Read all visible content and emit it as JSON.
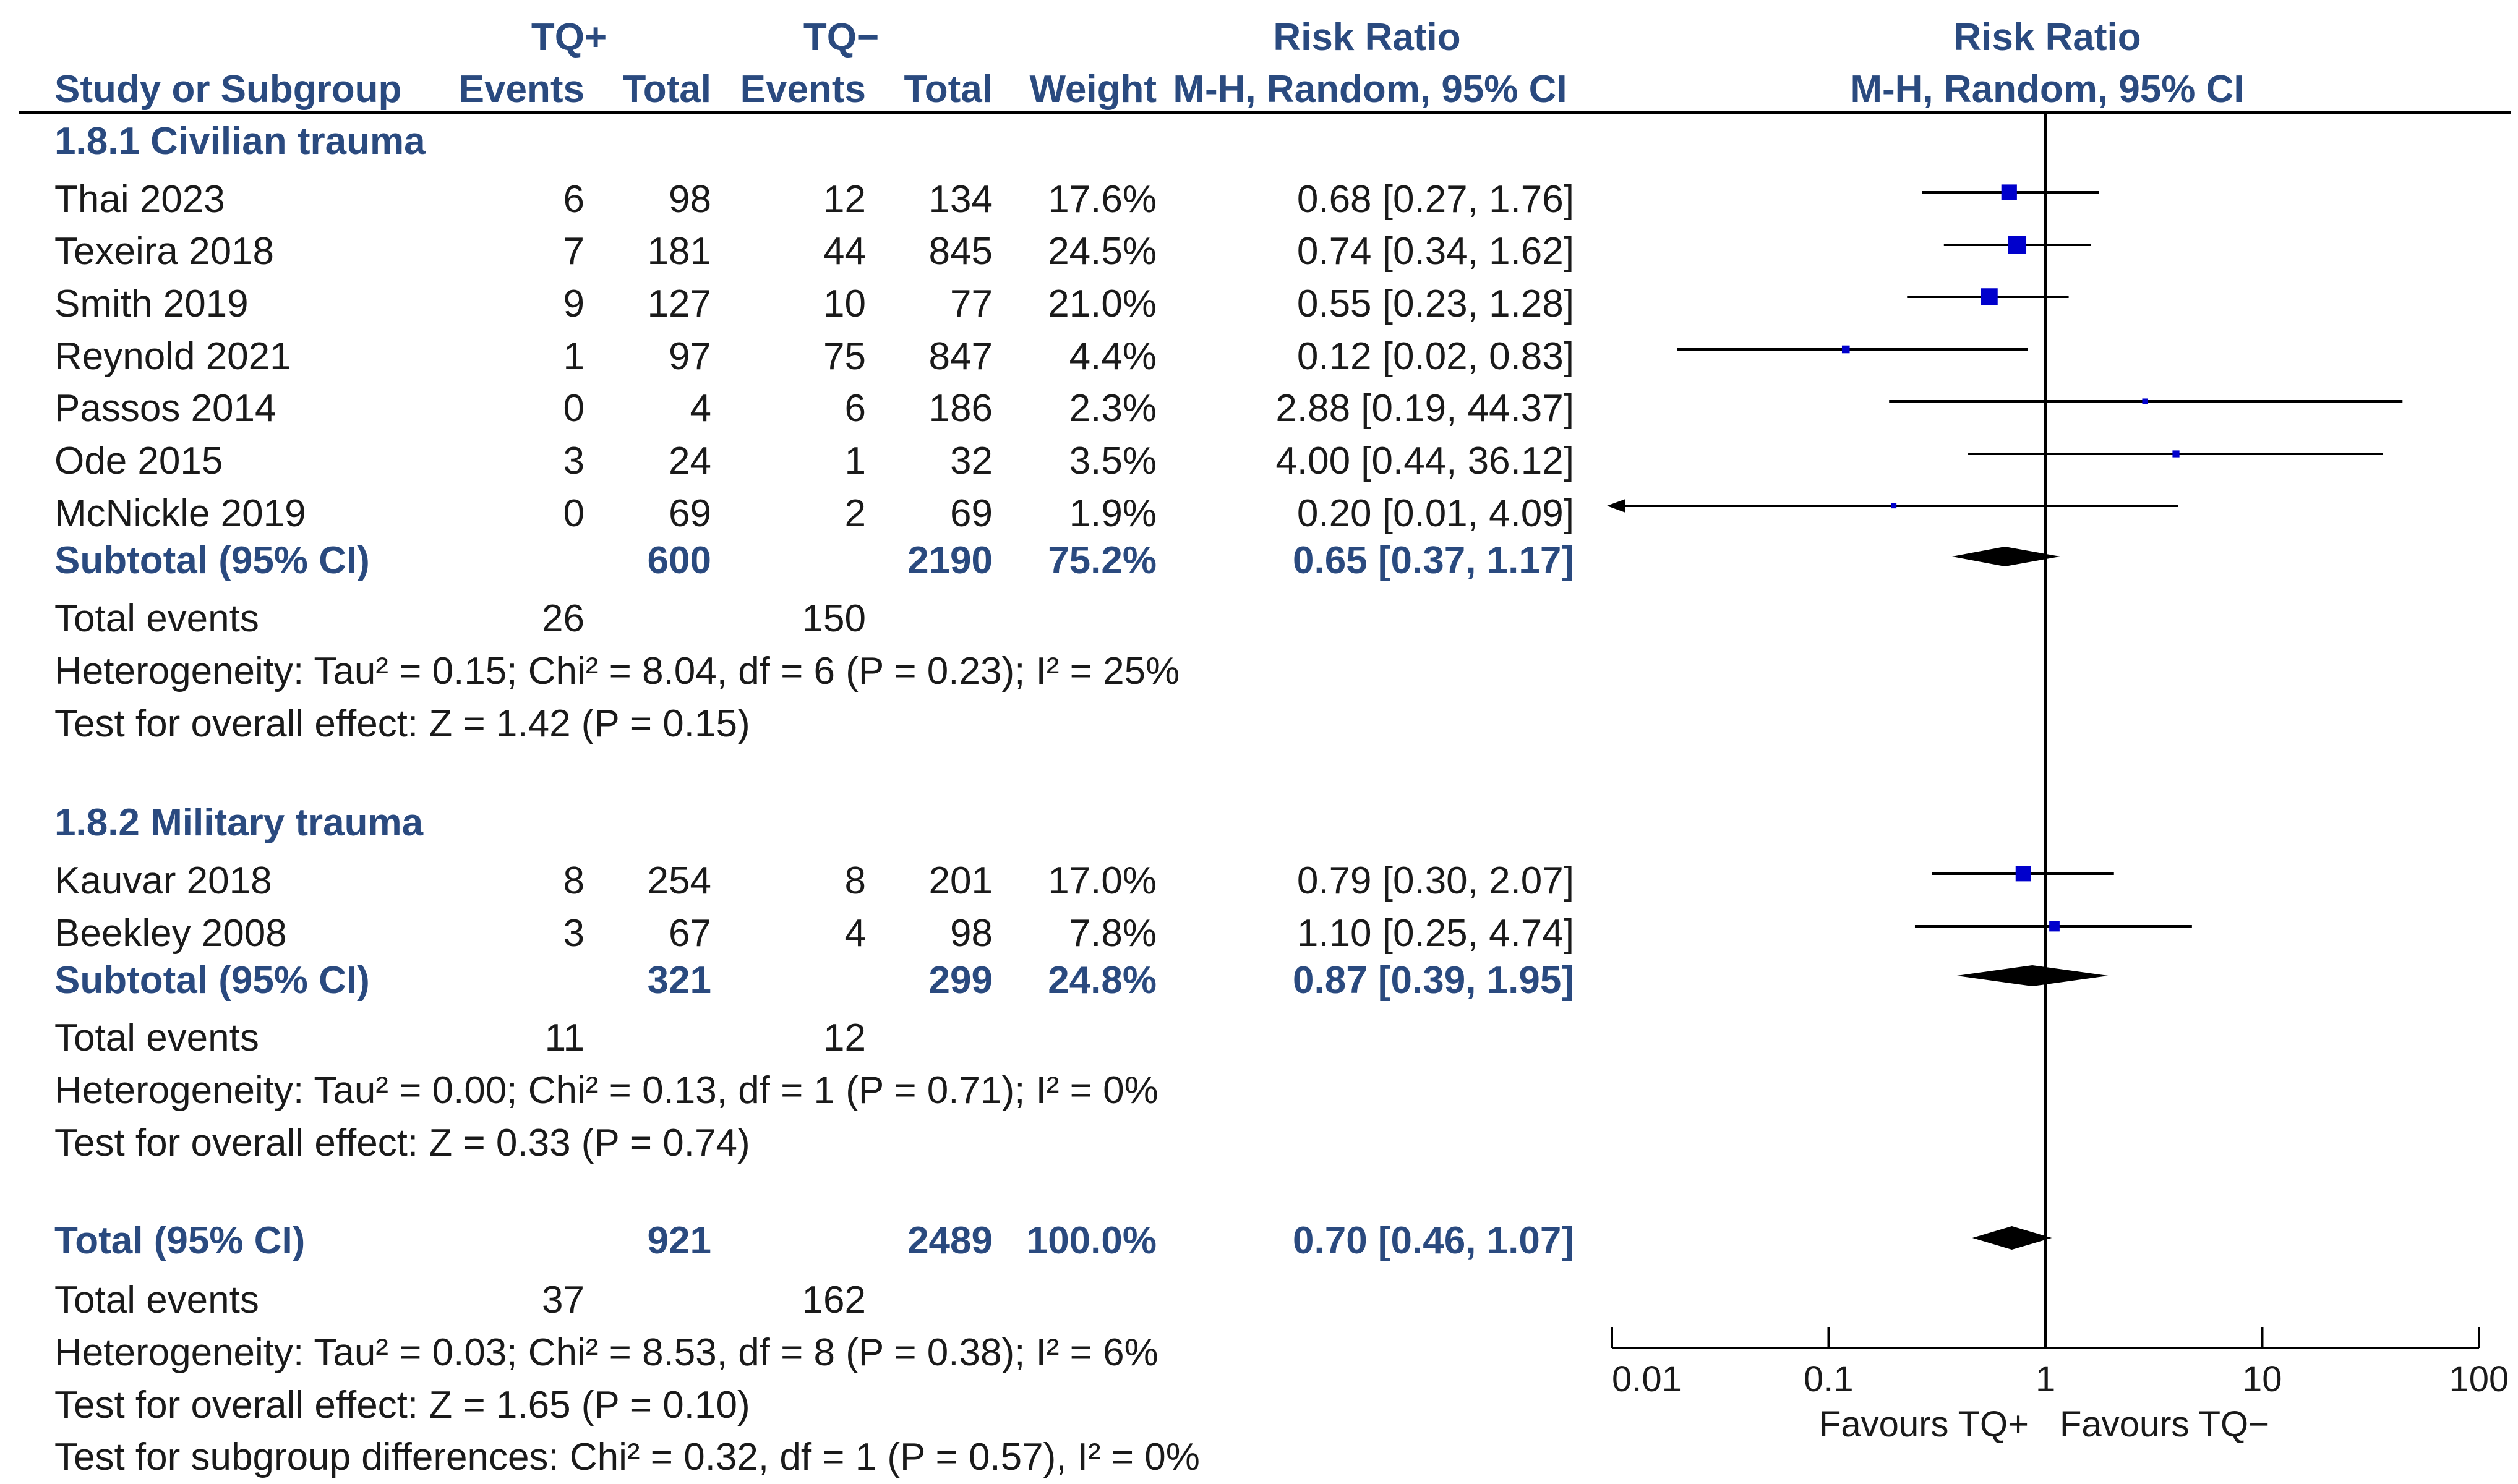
{
  "header": {
    "group1": "TQ+",
    "group2": "TQ−",
    "rr_col": "Risk Ratio",
    "rr_plot": "Risk Ratio",
    "study_col": "Study or Subgroup",
    "events1": "Events",
    "total1": "Total",
    "events2": "Events",
    "total2": "Total",
    "weight": "Weight",
    "method_col": "M-H, Random, 95% CI",
    "method_plot": "M-H, Random, 95% CI"
  },
  "subgroups": [
    {
      "title": "1.8.1 Civilian trauma",
      "studies": [
        {
          "name": "Thai 2023",
          "e1": "6",
          "n1": "98",
          "e2": "12",
          "n2": "134",
          "weight": "17.6%",
          "ci_text": "0.68 [0.27, 1.76]"
        },
        {
          "name": "Texeira 2018",
          "e1": "7",
          "n1": "181",
          "e2": "44",
          "n2": "845",
          "weight": "24.5%",
          "ci_text": "0.74 [0.34, 1.62]"
        },
        {
          "name": "Smith 2019",
          "e1": "9",
          "n1": "127",
          "e2": "10",
          "n2": "77",
          "weight": "21.0%",
          "ci_text": "0.55 [0.23, 1.28]"
        },
        {
          "name": "Reynold 2021",
          "e1": "1",
          "n1": "97",
          "e2": "75",
          "n2": "847",
          "weight": "4.4%",
          "ci_text": "0.12 [0.02, 0.83]"
        },
        {
          "name": "Passos 2014",
          "e1": "0",
          "n1": "4",
          "e2": "6",
          "n2": "186",
          "weight": "2.3%",
          "ci_text": "2.88 [0.19, 44.37]"
        },
        {
          "name": "Ode 2015",
          "e1": "3",
          "n1": "24",
          "e2": "1",
          "n2": "32",
          "weight": "3.5%",
          "ci_text": "4.00 [0.44, 36.12]"
        },
        {
          "name": "McNickle 2019",
          "e1": "0",
          "n1": "69",
          "e2": "2",
          "n2": "69",
          "weight": "1.9%",
          "ci_text": "0.20 [0.01, 4.09]"
        }
      ],
      "subtotal": {
        "label": "Subtotal (95% CI)",
        "n1": "600",
        "n2": "2190",
        "weight": "75.2%",
        "ci_text": "0.65 [0.37, 1.17]"
      },
      "events": {
        "label": "Total events",
        "e1": "26",
        "e2": "150"
      },
      "heterogeneity": "Heterogeneity: Tau² = 0.15; Chi² = 8.04, df = 6 (P = 0.23); I² = 25%",
      "overall": "Test for overall effect: Z = 1.42 (P = 0.15)"
    },
    {
      "title": "1.8.2 Military trauma",
      "studies": [
        {
          "name": "Kauvar 2018",
          "e1": "8",
          "n1": "254",
          "e2": "8",
          "n2": "201",
          "weight": "17.0%",
          "ci_text": "0.79 [0.30, 2.07]"
        },
        {
          "name": "Beekley 2008",
          "e1": "3",
          "n1": "67",
          "e2": "4",
          "n2": "98",
          "weight": "7.8%",
          "ci_text": "1.10 [0.25, 4.74]"
        }
      ],
      "subtotal": {
        "label": "Subtotal (95% CI)",
        "n1": "321",
        "n2": "299",
        "weight": "24.8%",
        "ci_text": "0.87 [0.39, 1.95]"
      },
      "events": {
        "label": "Total events",
        "e1": "11",
        "e2": "12"
      },
      "heterogeneity": "Heterogeneity: Tau² = 0.00; Chi² = 0.13, df = 1 (P = 0.71); I² = 0%",
      "overall": "Test for overall effect: Z = 0.33 (P = 0.74)"
    }
  ],
  "total": {
    "label": "Total (95% CI)",
    "n1": "921",
    "n2": "2489",
    "weight": "100.0%",
    "ci_text": "0.70 [0.46, 1.07]",
    "events": {
      "label": "Total events",
      "e1": "37",
      "e2": "162"
    },
    "heterogeneity": "Heterogeneity: Tau² = 0.03; Chi² = 8.53, df = 8 (P = 0.38); I² = 6%",
    "overall": "Test for overall effect: Z = 1.65 (P = 0.10)",
    "subgroup_diff": "Test for subgroup differences: Chi² = 0.32, df = 1 (P = 0.57), I² = 0%"
  },
  "axis": {
    "ticks": [
      "0.01",
      "0.1",
      "1",
      "10",
      "100"
    ],
    "favours_left": "Favours TQ+",
    "favours_right": "Favours TQ−"
  },
  "colors": {
    "header": "#2a4a7f",
    "marker": "#0000cc",
    "diamond": "#000000",
    "line": "#000000"
  },
  "chart_data": {
    "type": "forest",
    "title": "Risk Ratio",
    "xlabel": "M-H, Random, 95% CI",
    "xscale": "log",
    "xlim": [
      0.01,
      100
    ],
    "reference_line": 1,
    "studies": [
      {
        "name": "Thai 2023",
        "subgroup": "1.8.1 Civilian trauma",
        "rr": 0.68,
        "lo": 0.27,
        "hi": 1.76,
        "weight": 17.6
      },
      {
        "name": "Texeira 2018",
        "subgroup": "1.8.1 Civilian trauma",
        "rr": 0.74,
        "lo": 0.34,
        "hi": 1.62,
        "weight": 24.5
      },
      {
        "name": "Smith 2019",
        "subgroup": "1.8.1 Civilian trauma",
        "rr": 0.55,
        "lo": 0.23,
        "hi": 1.28,
        "weight": 21.0
      },
      {
        "name": "Reynold 2021",
        "subgroup": "1.8.1 Civilian trauma",
        "rr": 0.12,
        "lo": 0.02,
        "hi": 0.83,
        "weight": 4.4
      },
      {
        "name": "Passos 2014",
        "subgroup": "1.8.1 Civilian trauma",
        "rr": 2.88,
        "lo": 0.19,
        "hi": 44.37,
        "weight": 2.3
      },
      {
        "name": "Ode 2015",
        "subgroup": "1.8.1 Civilian trauma",
        "rr": 4.0,
        "lo": 0.44,
        "hi": 36.12,
        "weight": 3.5
      },
      {
        "name": "McNickle 2019",
        "subgroup": "1.8.1 Civilian trauma",
        "rr": 0.2,
        "lo": 0.01,
        "hi": 4.09,
        "weight": 1.9
      },
      {
        "name": "Kauvar 2018",
        "subgroup": "1.8.2 Military trauma",
        "rr": 0.79,
        "lo": 0.3,
        "hi": 2.07,
        "weight": 17.0
      },
      {
        "name": "Beekley 2008",
        "subgroup": "1.8.2 Military trauma",
        "rr": 1.1,
        "lo": 0.25,
        "hi": 4.74,
        "weight": 7.8
      }
    ],
    "pooled": [
      {
        "name": "Subtotal 1.8.1 Civilian trauma",
        "rr": 0.65,
        "lo": 0.37,
        "hi": 1.17
      },
      {
        "name": "Subtotal 1.8.2 Military trauma",
        "rr": 0.87,
        "lo": 0.39,
        "hi": 1.95
      },
      {
        "name": "Total",
        "rr": 0.7,
        "lo": 0.46,
        "hi": 1.07
      }
    ]
  }
}
